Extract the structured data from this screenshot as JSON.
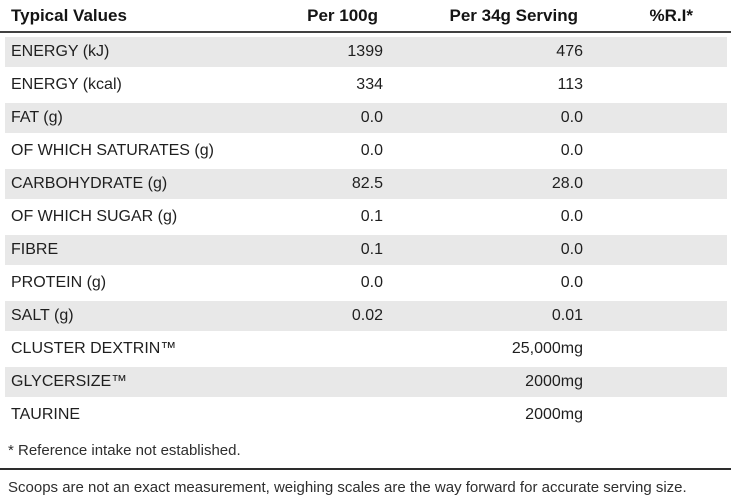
{
  "table": {
    "headers": [
      "Typical Values",
      "Per 100g",
      "Per 34g Serving",
      "%R.I*"
    ],
    "rows": [
      {
        "label": "ENERGY (kJ)",
        "per100g": "1399",
        "per34g": "476",
        "ri": ""
      },
      {
        "label": "ENERGY (kcal)",
        "per100g": "334",
        "per34g": "113",
        "ri": ""
      },
      {
        "label": "FAT (g)",
        "per100g": "0.0",
        "per34g": "0.0",
        "ri": ""
      },
      {
        "label": "OF WHICH SATURATES (g)",
        "per100g": "0.0",
        "per34g": "0.0",
        "ri": ""
      },
      {
        "label": "CARBOHYDRATE (g)",
        "per100g": "82.5",
        "per34g": "28.0",
        "ri": ""
      },
      {
        "label": "OF WHICH SUGAR (g)",
        "per100g": "0.1",
        "per34g": "0.0",
        "ri": ""
      },
      {
        "label": "FIBRE",
        "per100g": "0.1",
        "per34g": "0.0",
        "ri": ""
      },
      {
        "label": "PROTEIN (g)",
        "per100g": "0.0",
        "per34g": "0.0",
        "ri": ""
      },
      {
        "label": "SALT (g)",
        "per100g": "0.02",
        "per34g": "0.01",
        "ri": ""
      },
      {
        "label": "CLUSTER DEXTRIN™",
        "per100g": "",
        "per34g": "25,000mg",
        "ri": ""
      },
      {
        "label": "GLYCERSIZE™",
        "per100g": "",
        "per34g": "2000mg",
        "ri": ""
      },
      {
        "label": "TAURINE",
        "per100g": "",
        "per34g": "2000mg",
        "ri": ""
      }
    ],
    "footnote": "* Reference intake not established.",
    "disclaimer": "Scoops are not an exact measurement, weighing scales are the way forward for accurate serving size."
  },
  "colors": {
    "stripe": "#e8e8e8",
    "header_rule": "#414141",
    "divider": "#2d2d2d",
    "text": "#1f1f1f"
  }
}
